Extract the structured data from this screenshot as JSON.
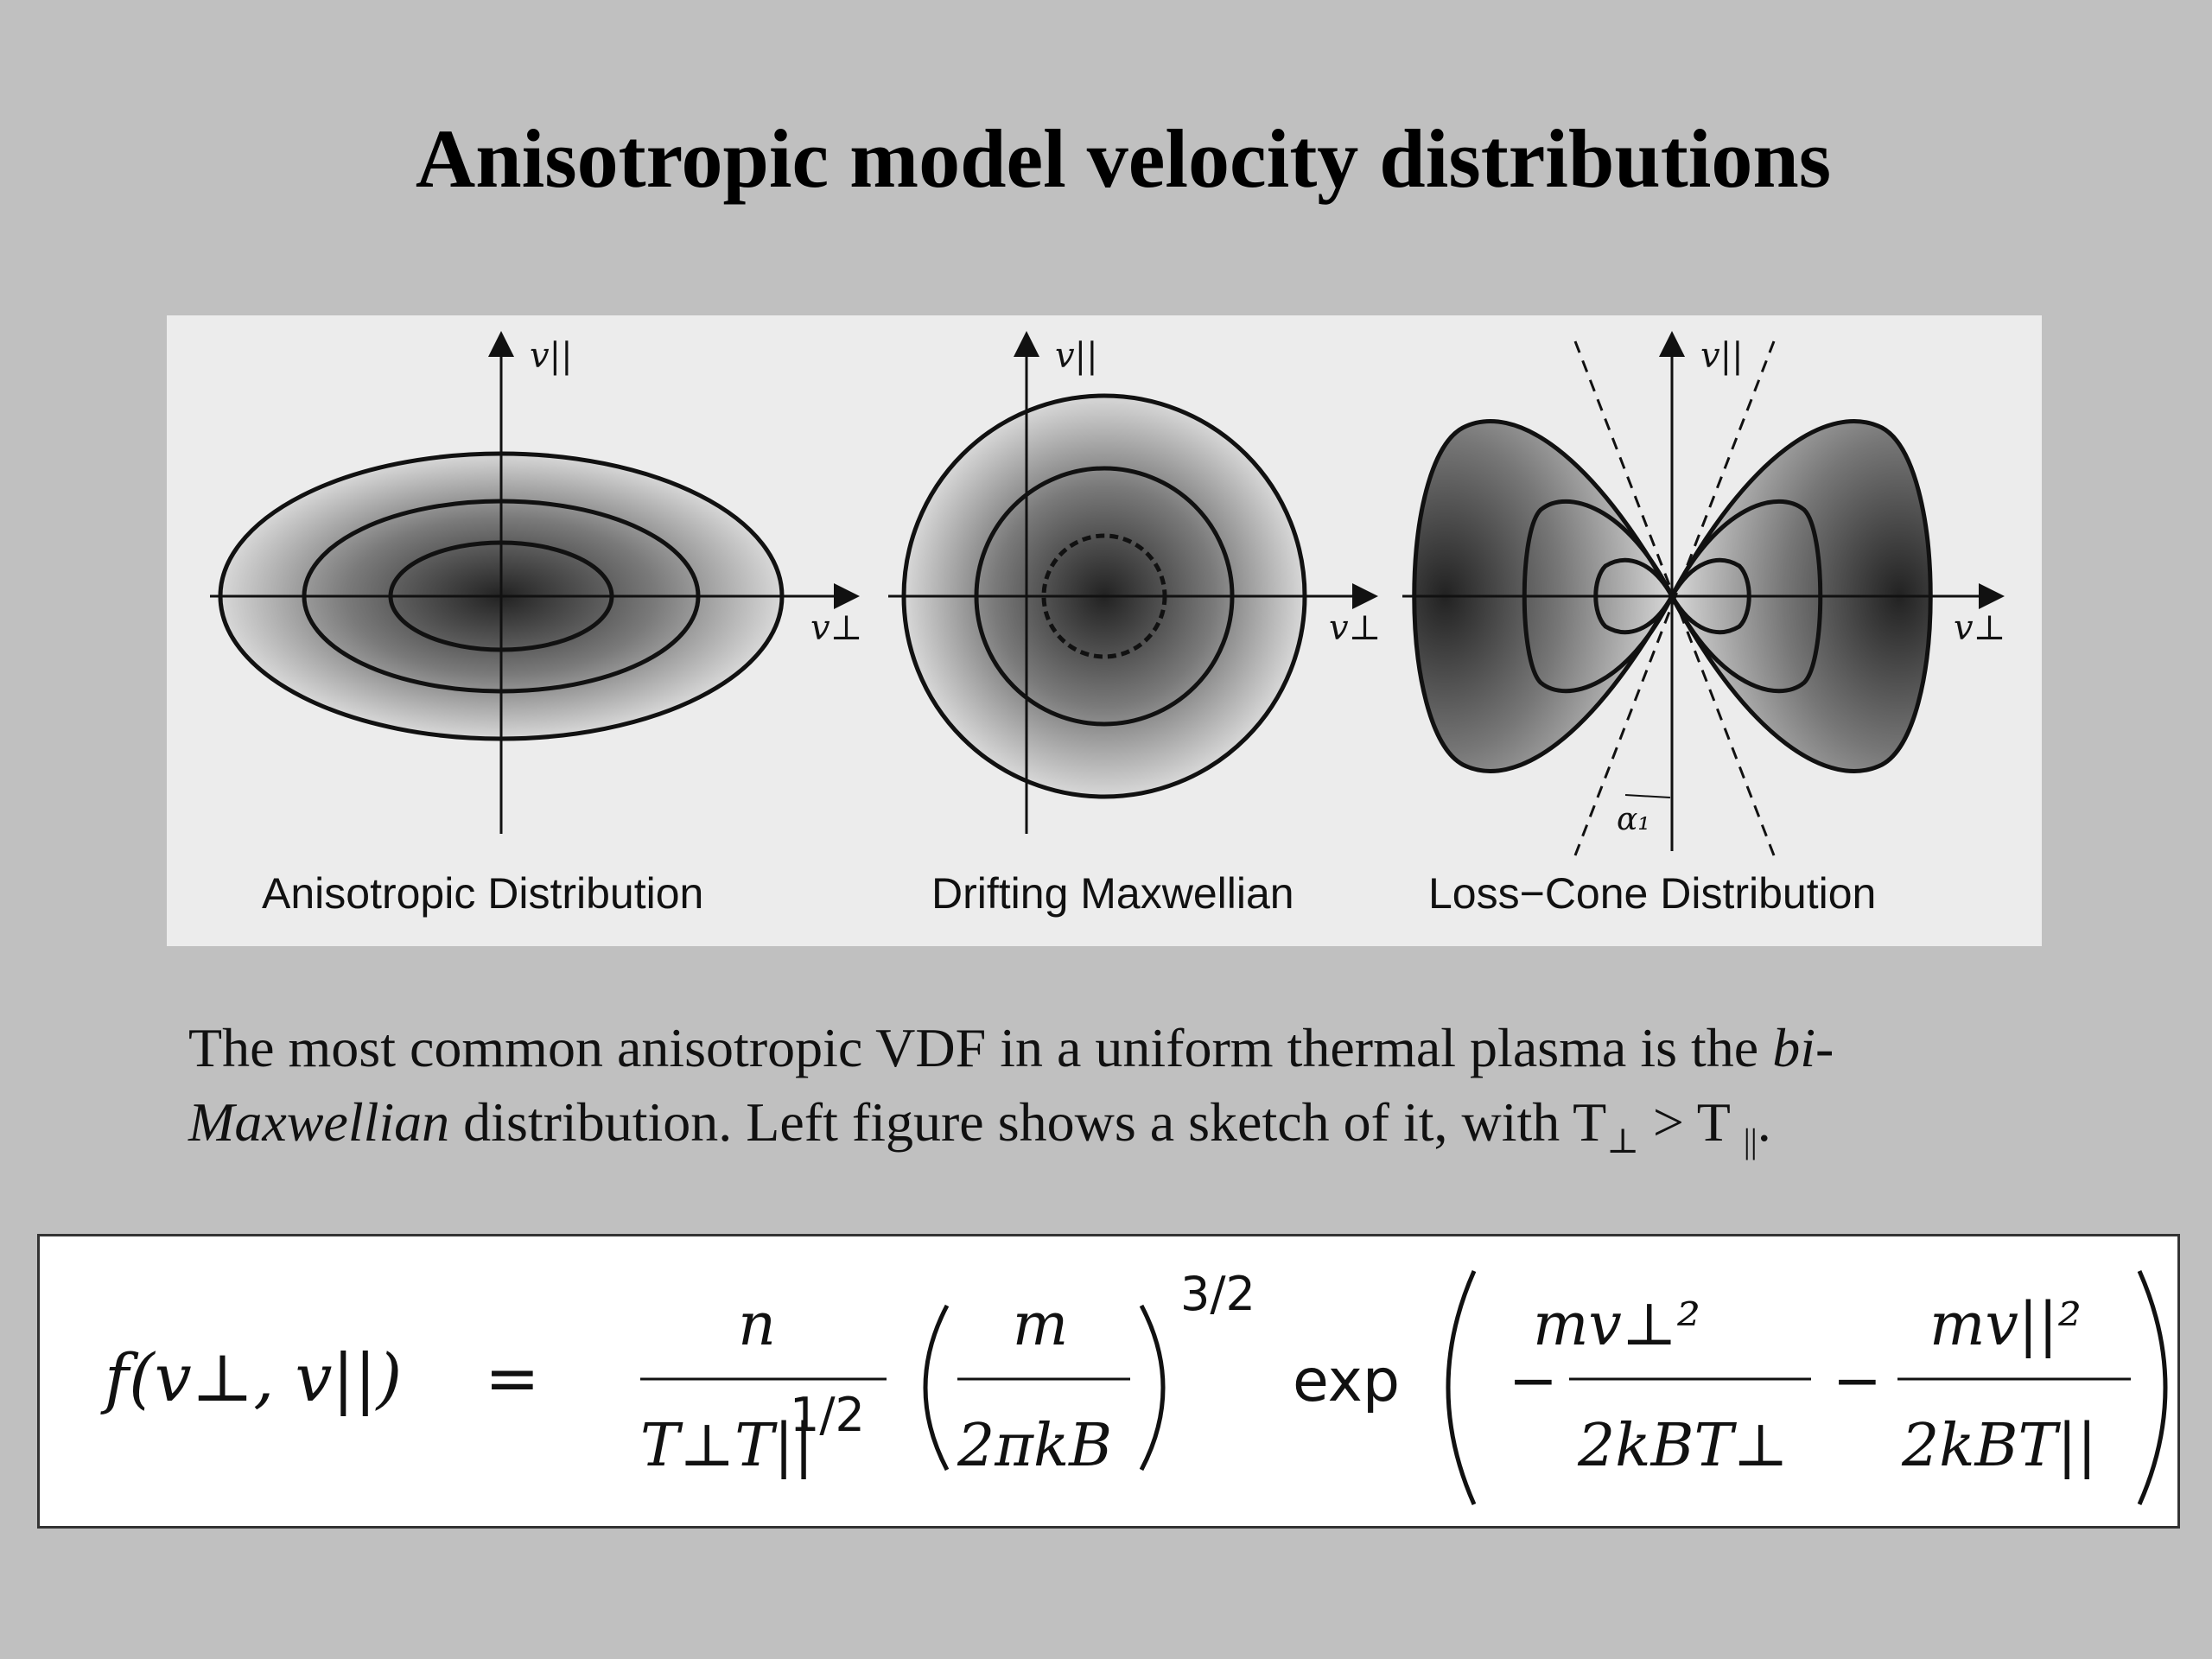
{
  "title": "Anisotropic model velocity distributions",
  "figure": {
    "axis_labels": {
      "parallel": "v||",
      "perpendicular": "v⊥",
      "loss_cone_angle": "α₁"
    },
    "captions": [
      "Anisotropic Distribution",
      "Drifting Maxwellian",
      "Loss−Cone Distribution"
    ]
  },
  "paragraph": {
    "line1_text": "The most common anisotropic VDF in a uniform thermal plasma is the ",
    "line1_italic": "bi-",
    "line2_italic": "Maxwellian",
    "line2_text": " distribution. Left figure shows a sketch of it, with  T",
    "symbol_a": "⊥",
    "gt": " > T ",
    "symbol_b": "||",
    "end": "."
  },
  "formula": {
    "lhs": "f(v⊥, v||)",
    "equals": "=",
    "numerator_1": "n",
    "denominator_1": "T⊥T||",
    "denominator_1_exp": "1/2",
    "numerator_2": "m",
    "denominator_2": "2πkB",
    "power": "3/2",
    "exp_word": "exp",
    "minus": "−",
    "numerator_3": "mv⊥²",
    "denominator_3": "2kBT⊥",
    "numerator_4": "mv||²",
    "denominator_4": "2kBT||"
  }
}
